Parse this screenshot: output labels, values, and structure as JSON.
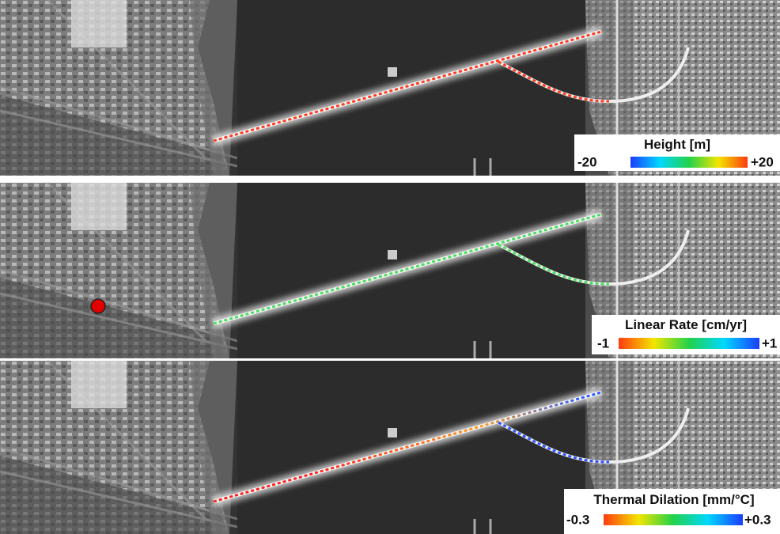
{
  "panels": [
    {
      "legend": {
        "title": "Height [m]",
        "min_label": "-20",
        "max_label": "+20"
      }
    },
    {
      "legend": {
        "title": "Linear Rate [cm/yr]",
        "min_label": "-1",
        "max_label": "+1"
      }
    },
    {
      "legend": {
        "title": "Thermal Dilation [mm/°C]",
        "min_label": "-0.3",
        "max_label": "+0.3"
      }
    }
  ]
}
